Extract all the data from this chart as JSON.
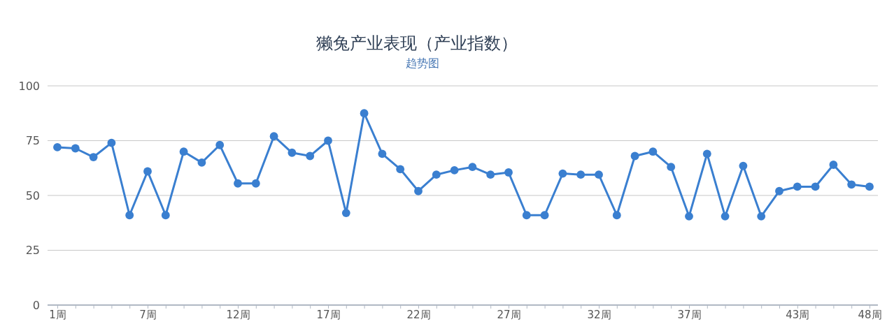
{
  "chart_data": {
    "type": "line",
    "title": "獭兔产业表现（产业指数）",
    "subtitle": "趋势图",
    "categories": [
      "1周",
      null,
      null,
      null,
      null,
      "7周",
      null,
      null,
      null,
      null,
      "12周",
      null,
      null,
      null,
      null,
      "17周",
      null,
      null,
      null,
      null,
      "22周",
      null,
      null,
      null,
      null,
      "27周",
      null,
      null,
      null,
      null,
      "32周",
      null,
      null,
      null,
      null,
      "37周",
      null,
      null,
      null,
      null,
      null,
      "43周",
      null,
      null,
      null,
      "48周"
    ],
    "series": [
      {
        "color": "#3a7fd0",
        "values": [
          72,
          71.5,
          67.5,
          74,
          41,
          61,
          41,
          70,
          65,
          73,
          55.5,
          55.5,
          77,
          69.5,
          68,
          75,
          42,
          87.5,
          69,
          62,
          52,
          59.5,
          61.5,
          63,
          59.5,
          60.5,
          41,
          41,
          60,
          59.5,
          59.5,
          41,
          68,
          70,
          63,
          40.5,
          69,
          40.5,
          63.5,
          40.5,
          52,
          54,
          54,
          64,
          55,
          54
        ]
      }
    ],
    "ylim": [
      0,
      100
    ],
    "yticks": [
      0,
      25,
      50,
      75,
      100
    ],
    "grid": "y",
    "marker": "circle",
    "line_style": "solid"
  }
}
